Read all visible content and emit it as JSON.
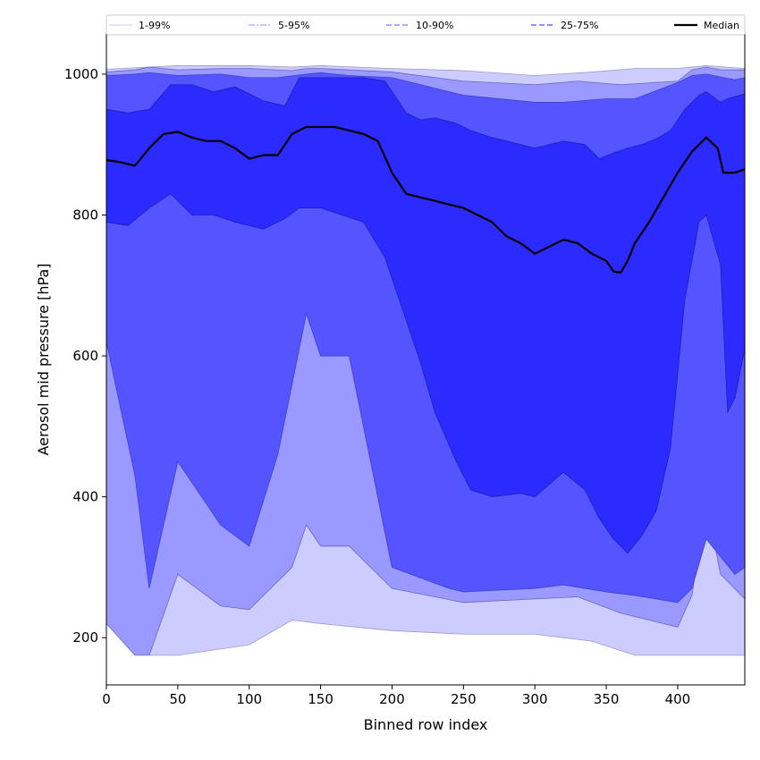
{
  "chart_data": {
    "type": "area",
    "xlabel": "Binned row index",
    "ylabel": "Aerosol mid pressure [hPa]",
    "xlim": [
      0,
      447
    ],
    "ylim": [
      133,
      1057
    ],
    "x_ticks": [
      0,
      50,
      100,
      150,
      200,
      250,
      300,
      350,
      400
    ],
    "y_ticks": [
      200,
      400,
      600,
      800,
      1000
    ],
    "legend_position": "top",
    "grid": false,
    "legend": [
      {
        "label": "1-99%",
        "style": "solid",
        "color": "#d6d6f2"
      },
      {
        "label": "5-95%",
        "style": "dashdot",
        "color": "#a8a8ff"
      },
      {
        "label": "10-90%",
        "style": "dashed",
        "color": "#7a7aff"
      },
      {
        "label": "25-75%",
        "style": "dashed",
        "color": "#4d4dff"
      },
      {
        "label": "Median",
        "style": "solid",
        "color": "#000000"
      }
    ],
    "bands": [
      {
        "name": "1-99%",
        "fill": "#ccccff",
        "stroke": "#9a9acc",
        "x": [
          0,
          30,
          50,
          100,
          130,
          150,
          200,
          250,
          300,
          340,
          370,
          400,
          420,
          447
        ],
        "lower": [
          300,
          175,
          175,
          190,
          225,
          220,
          210,
          205,
          205,
          195,
          175,
          175,
          175,
          175
        ],
        "upper": [
          1007,
          1010,
          1012,
          1012,
          1010,
          1012,
          1008,
          1005,
          998,
          1003,
          1008,
          1008,
          1012,
          1008
        ]
      },
      {
        "name": "5-95%",
        "fill": "#9999ff",
        "stroke": "#6666cc",
        "x": [
          0,
          20,
          30,
          50,
          80,
          100,
          130,
          140,
          150,
          170,
          200,
          250,
          300,
          330,
          360,
          400,
          410,
          420,
          430,
          447
        ],
        "lower": [
          220,
          175,
          175,
          290,
          245,
          240,
          300,
          360,
          330,
          330,
          270,
          250,
          255,
          258,
          235,
          215,
          260,
          395,
          290,
          255
        ],
        "upper": [
          1003,
          1006,
          1010,
          1006,
          1008,
          1008,
          1005,
          1008,
          1008,
          1006,
          1003,
          990,
          985,
          990,
          985,
          990,
          1006,
          1010,
          1006,
          1006
        ]
      },
      {
        "name": "10-90%",
        "fill": "#5555ff",
        "stroke": "#3f3fcc",
        "x": [
          0,
          20,
          30,
          50,
          80,
          100,
          120,
          140,
          150,
          170,
          200,
          240,
          250,
          300,
          320,
          350,
          370,
          400,
          410,
          420,
          440,
          447
        ],
        "lower": [
          620,
          430,
          270,
          450,
          360,
          330,
          460,
          660,
          600,
          600,
          300,
          270,
          265,
          270,
          275,
          265,
          260,
          250,
          270,
          340,
          290,
          300
        ],
        "upper": [
          998,
          1000,
          1002,
          998,
          1000,
          995,
          995,
          1000,
          1002,
          998,
          995,
          975,
          970,
          960,
          960,
          965,
          965,
          988,
          998,
          1000,
          992,
          995
        ]
      },
      {
        "name": "25-75%",
        "fill": "#2b2bff",
        "stroke": "#1f1fb0",
        "x": [
          0,
          15,
          30,
          45,
          60,
          75,
          90,
          110,
          125,
          135,
          150,
          165,
          180,
          195,
          210,
          220,
          230,
          245,
          255,
          270,
          290,
          300,
          320,
          335,
          345,
          355,
          365,
          375,
          385,
          395,
          405,
          415,
          420,
          430,
          435,
          440,
          447
        ],
        "lower": [
          790,
          785,
          810,
          830,
          800,
          800,
          790,
          780,
          795,
          810,
          810,
          800,
          790,
          740,
          650,
          590,
          520,
          450,
          410,
          400,
          405,
          400,
          435,
          410,
          370,
          340,
          320,
          345,
          380,
          470,
          680,
          790,
          800,
          730,
          520,
          540,
          610
        ],
        "upper": [
          950,
          945,
          950,
          985,
          985,
          975,
          982,
          962,
          955,
          995,
          995,
          995,
          995,
          990,
          945,
          935,
          938,
          930,
          920,
          910,
          900,
          895,
          905,
          900,
          880,
          888,
          895,
          900,
          908,
          920,
          950,
          970,
          975,
          960,
          965,
          968,
          972
        ]
      }
    ],
    "median": {
      "name": "Median",
      "color": "#000000",
      "x": [
        0,
        10,
        20,
        30,
        40,
        50,
        60,
        70,
        80,
        90,
        100,
        110,
        120,
        130,
        140,
        150,
        160,
        170,
        180,
        190,
        200,
        210,
        220,
        230,
        240,
        250,
        260,
        270,
        280,
        290,
        300,
        310,
        320,
        330,
        340,
        350,
        355,
        360,
        365,
        370,
        380,
        390,
        400,
        410,
        420,
        428,
        432,
        440,
        447
      ],
      "y": [
        878,
        875,
        870,
        895,
        915,
        918,
        910,
        905,
        905,
        895,
        880,
        885,
        885,
        915,
        925,
        925,
        925,
        920,
        915,
        905,
        860,
        830,
        825,
        820,
        815,
        810,
        800,
        790,
        770,
        760,
        745,
        755,
        765,
        760,
        745,
        735,
        720,
        718,
        735,
        760,
        790,
        825,
        860,
        890,
        910,
        895,
        860,
        860,
        865
      ]
    }
  }
}
